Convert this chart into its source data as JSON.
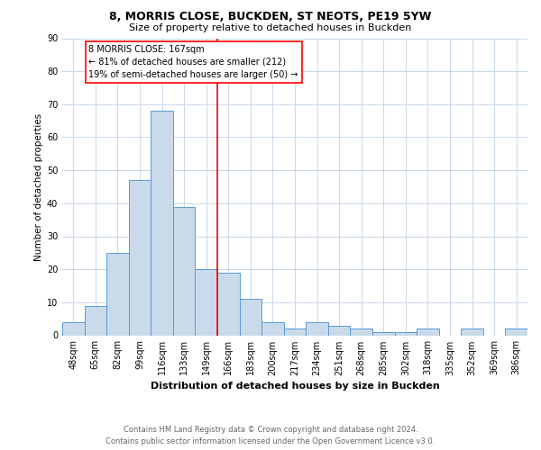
{
  "title_line1": "8, MORRIS CLOSE, BUCKDEN, ST NEOTS, PE19 5YW",
  "title_line2": "Size of property relative to detached houses in Buckden",
  "xlabel": "Distribution of detached houses by size in Buckden",
  "ylabel": "Number of detached properties",
  "footnote_line1": "Contains HM Land Registry data © Crown copyright and database right 2024.",
  "footnote_line2": "Contains public sector information licensed under the Open Government Licence v3.0.",
  "bar_labels": [
    "48sqm",
    "65sqm",
    "82sqm",
    "99sqm",
    "116sqm",
    "133sqm",
    "149sqm",
    "166sqm",
    "183sqm",
    "200sqm",
    "217sqm",
    "234sqm",
    "251sqm",
    "268sqm",
    "285sqm",
    "302sqm",
    "318sqm",
    "335sqm",
    "352sqm",
    "369sqm",
    "386sqm"
  ],
  "bar_values": [
    4,
    9,
    25,
    47,
    68,
    39,
    20,
    19,
    11,
    4,
    2,
    4,
    3,
    2,
    1,
    1,
    2,
    0,
    2,
    0,
    2
  ],
  "bar_color": "#c9daea",
  "bar_edge_color": "#5b9bd5",
  "vline_color": "red",
  "annotation_title": "8 MORRIS CLOSE: 167sqm",
  "annotation_line2": "← 81% of detached houses are smaller (212)",
  "annotation_line3": "19% of semi-detached houses are larger (50) →",
  "annotation_box_color": "white",
  "annotation_box_edge_color": "red",
  "ylim": [
    0,
    90
  ],
  "yticks": [
    0,
    10,
    20,
    30,
    40,
    50,
    60,
    70,
    80,
    90
  ],
  "background_color": "white",
  "grid_color": "#c8d8e8",
  "title_fontsize": 9,
  "subtitle_fontsize": 8,
  "ylabel_fontsize": 7.5,
  "xlabel_fontsize": 8,
  "tick_fontsize": 7,
  "annotation_fontsize": 7,
  "footnote_fontsize": 6
}
